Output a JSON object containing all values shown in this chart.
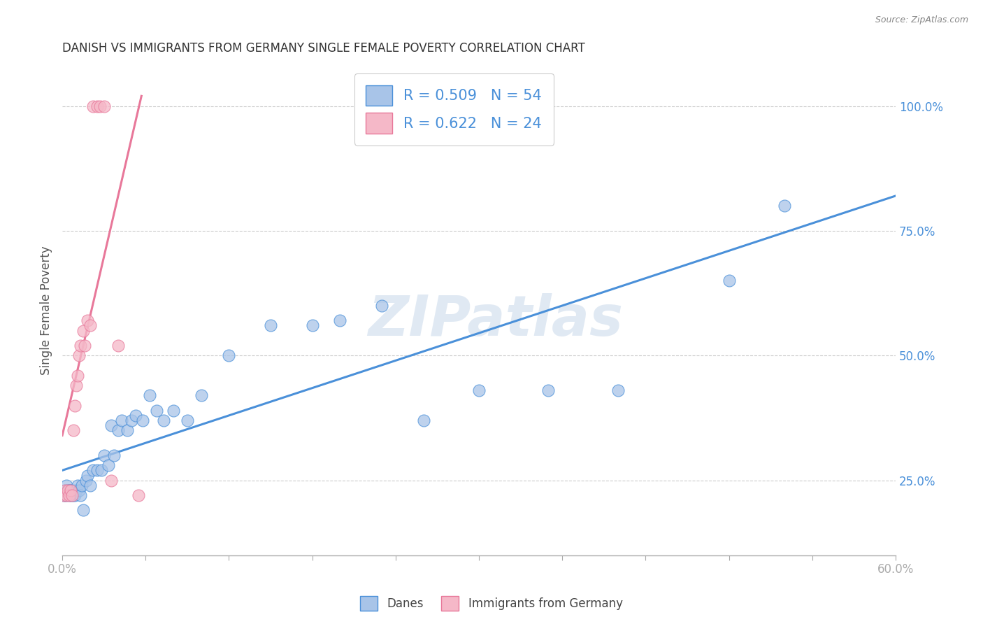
{
  "title": "DANISH VS IMMIGRANTS FROM GERMANY SINGLE FEMALE POVERTY CORRELATION CHART",
  "source": "Source: ZipAtlas.com",
  "ylabel": "Single Female Poverty",
  "right_yticks": [
    "100.0%",
    "75.0%",
    "50.0%",
    "25.0%"
  ],
  "right_ytick_vals": [
    1.0,
    0.75,
    0.5,
    0.25
  ],
  "watermark": "ZIPatlas",
  "legend": {
    "blue_r": "R = 0.509",
    "blue_n": "N = 54",
    "pink_r": "R = 0.622",
    "pink_n": "N = 24"
  },
  "blue_color": "#a8c4e8",
  "pink_color": "#f5b8c8",
  "blue_line_color": "#4a90d9",
  "pink_line_color": "#e8789a",
  "danes_label": "Danes",
  "immigrants_label": "Immigrants from Germany",
  "xlim": [
    0.0,
    0.6
  ],
  "ylim": [
    0.1,
    1.08
  ],
  "danes_x": [
    0.001,
    0.002,
    0.002,
    0.003,
    0.003,
    0.004,
    0.005,
    0.005,
    0.006,
    0.006,
    0.007,
    0.007,
    0.008,
    0.008,
    0.009,
    0.01,
    0.011,
    0.012,
    0.013,
    0.014,
    0.015,
    0.017,
    0.018,
    0.02,
    0.022,
    0.025,
    0.028,
    0.03,
    0.033,
    0.035,
    0.037,
    0.04,
    0.043,
    0.047,
    0.05,
    0.053,
    0.058,
    0.063,
    0.068,
    0.073,
    0.08,
    0.09,
    0.1,
    0.12,
    0.15,
    0.18,
    0.2,
    0.23,
    0.26,
    0.3,
    0.35,
    0.4,
    0.48,
    0.52
  ],
  "danes_y": [
    0.22,
    0.23,
    0.22,
    0.22,
    0.24,
    0.23,
    0.22,
    0.23,
    0.22,
    0.23,
    0.23,
    0.22,
    0.23,
    0.22,
    0.22,
    0.23,
    0.24,
    0.23,
    0.22,
    0.24,
    0.19,
    0.25,
    0.26,
    0.24,
    0.27,
    0.27,
    0.27,
    0.3,
    0.28,
    0.36,
    0.3,
    0.35,
    0.37,
    0.35,
    0.37,
    0.38,
    0.37,
    0.42,
    0.39,
    0.37,
    0.39,
    0.37,
    0.42,
    0.5,
    0.56,
    0.56,
    0.57,
    0.6,
    0.37,
    0.43,
    0.43,
    0.43,
    0.65,
    0.8
  ],
  "immigrants_x": [
    0.001,
    0.002,
    0.003,
    0.004,
    0.005,
    0.006,
    0.007,
    0.008,
    0.009,
    0.01,
    0.011,
    0.012,
    0.013,
    0.015,
    0.016,
    0.018,
    0.02,
    0.022,
    0.025,
    0.027,
    0.03,
    0.035,
    0.04,
    0.055
  ],
  "immigrants_y": [
    0.22,
    0.23,
    0.22,
    0.23,
    0.22,
    0.23,
    0.22,
    0.35,
    0.4,
    0.44,
    0.46,
    0.5,
    0.52,
    0.55,
    0.52,
    0.57,
    0.56,
    1.0,
    1.0,
    1.0,
    1.0,
    0.25,
    0.52,
    0.22
  ],
  "blue_line_x": [
    0.0,
    0.6
  ],
  "blue_line_y": [
    0.27,
    0.82
  ],
  "pink_line_x": [
    0.0,
    0.057
  ],
  "pink_line_y": [
    0.34,
    1.02
  ]
}
